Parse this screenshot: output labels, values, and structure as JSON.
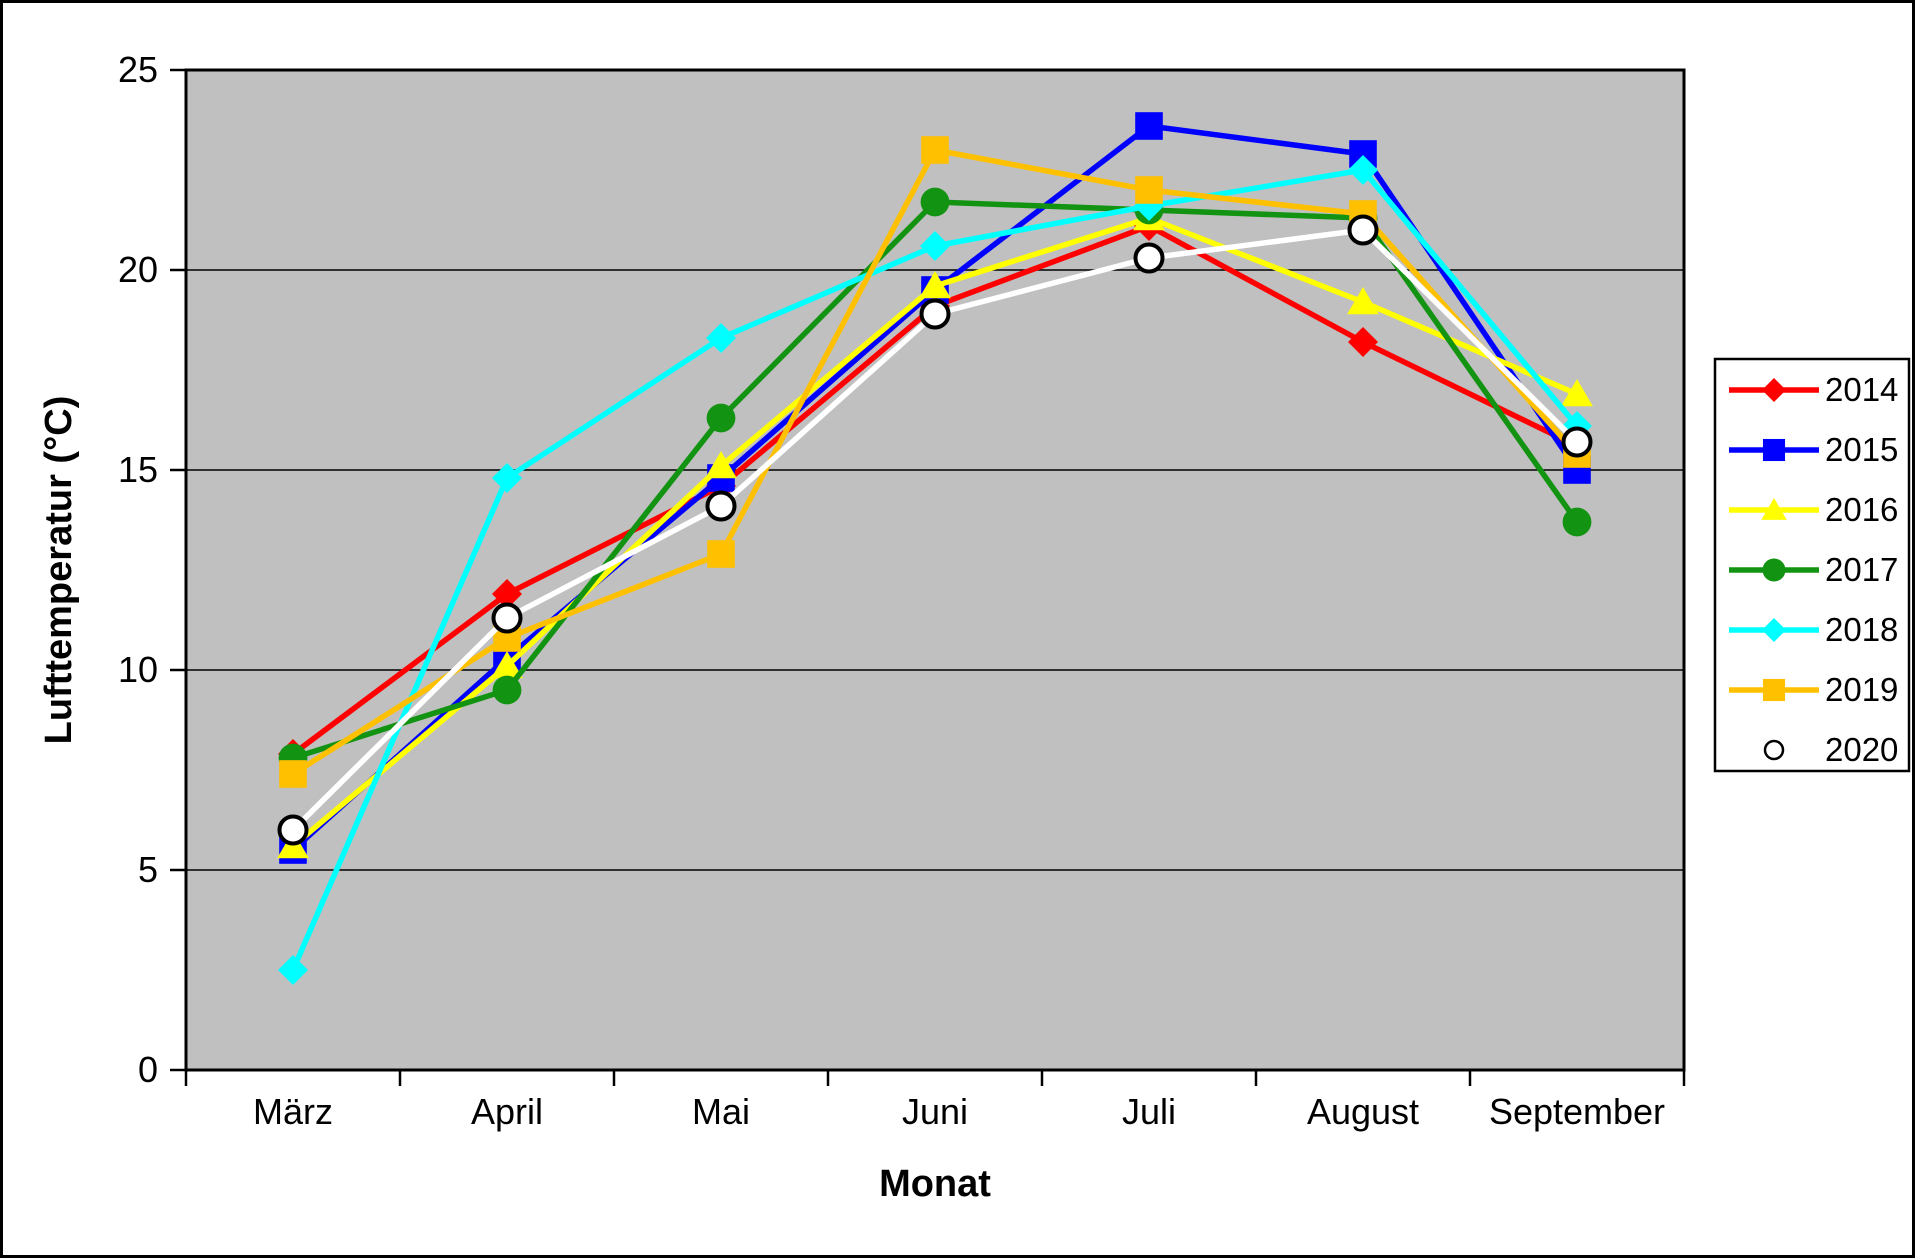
{
  "chart_data": {
    "type": "line",
    "title": "",
    "xlabel": "Monat",
    "ylabel": "Lufttemperatur (°C)",
    "categories": [
      "März",
      "April",
      "Mai",
      "Juni",
      "Juli",
      "August",
      "September"
    ],
    "series": [
      {
        "name": "2014",
        "color": "#ff0000",
        "marker": "diamond",
        "values": [
          7.9,
          11.9,
          14.6,
          19.1,
          21.1,
          18.2,
          15.6
        ]
      },
      {
        "name": "2015",
        "color": "#0000ff",
        "marker": "square",
        "values": [
          5.5,
          10.3,
          14.8,
          19.5,
          23.6,
          22.9,
          15.0
        ]
      },
      {
        "name": "2016",
        "color": "#ffff00",
        "marker": "triangle",
        "values": [
          5.6,
          10.1,
          15.1,
          19.6,
          21.3,
          19.2,
          16.9
        ]
      },
      {
        "name": "2017",
        "color": "#129312",
        "marker": "circle",
        "values": [
          7.8,
          9.5,
          16.3,
          21.7,
          21.5,
          21.3,
          13.7
        ]
      },
      {
        "name": "2018",
        "color": "#00ffff",
        "marker": "diamond",
        "values": [
          2.5,
          14.8,
          18.3,
          20.6,
          21.6,
          22.5,
          16.1
        ]
      },
      {
        "name": "2019",
        "color": "#ffc000",
        "marker": "square",
        "values": [
          7.4,
          10.8,
          12.9,
          23.0,
          22.0,
          21.4,
          15.4
        ]
      },
      {
        "name": "2020",
        "color": "#ffffff",
        "marker": "circle-outline",
        "values": [
          6.0,
          11.3,
          14.1,
          18.9,
          20.3,
          21.0,
          15.7
        ]
      }
    ],
    "ylim": [
      0,
      25
    ],
    "ytick_step": 5,
    "yticks": [
      "0",
      "5",
      "10",
      "15",
      "20",
      "25"
    ],
    "grid": true,
    "legend_position": "right",
    "plot_bg_color": "#c0c0c0",
    "axis_color": "#000000"
  }
}
